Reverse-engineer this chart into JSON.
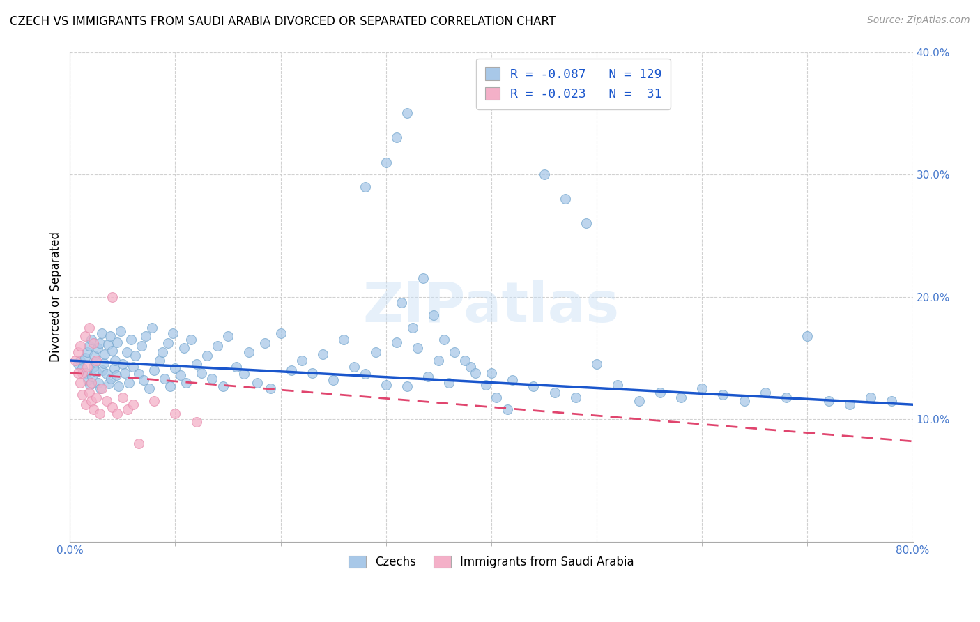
{
  "title": "CZECH VS IMMIGRANTS FROM SAUDI ARABIA DIVORCED OR SEPARATED CORRELATION CHART",
  "source": "Source: ZipAtlas.com",
  "ylabel": "Divorced or Separated",
  "xlim": [
    0.0,
    0.8
  ],
  "ylim": [
    0.0,
    0.4
  ],
  "yticks": [
    0.1,
    0.2,
    0.3,
    0.4
  ],
  "xticks": [
    0.0,
    0.8
  ],
  "minor_xticks": [
    0.1,
    0.2,
    0.3,
    0.4,
    0.5,
    0.6,
    0.7
  ],
  "minor_yticks": [],
  "czech_color": "#a8c8e8",
  "saudi_color": "#f4b0c8",
  "czech_edge_color": "#7aaad0",
  "saudi_edge_color": "#e890b0",
  "czech_line_color": "#1a56cc",
  "saudi_line_color": "#e0456e",
  "czech_R": -0.087,
  "czech_N": 129,
  "saudi_R": -0.023,
  "saudi_N": 31,
  "watermark": "ZIPatlas",
  "legend_czech": "Czechs",
  "legend_saudi": "Immigrants from Saudi Arabia",
  "background_color": "#ffffff",
  "grid_color": "#cccccc",
  "tick_color": "#4477cc",
  "czech_trend_start": 0.148,
  "czech_trend_end": 0.112,
  "saudi_trend_start": 0.138,
  "saudi_trend_end": 0.082,
  "czech_x": [
    0.008,
    0.01,
    0.012,
    0.014,
    0.015,
    0.016,
    0.017,
    0.018,
    0.019,
    0.02,
    0.021,
    0.022,
    0.023,
    0.024,
    0.025,
    0.026,
    0.027,
    0.028,
    0.029,
    0.03,
    0.031,
    0.032,
    0.033,
    0.035,
    0.036,
    0.037,
    0.038,
    0.039,
    0.04,
    0.042,
    0.043,
    0.044,
    0.045,
    0.046,
    0.048,
    0.05,
    0.052,
    0.054,
    0.056,
    0.058,
    0.06,
    0.062,
    0.065,
    0.068,
    0.07,
    0.072,
    0.075,
    0.078,
    0.08,
    0.085,
    0.088,
    0.09,
    0.093,
    0.095,
    0.098,
    0.1,
    0.105,
    0.108,
    0.11,
    0.115,
    0.12,
    0.125,
    0.13,
    0.135,
    0.14,
    0.145,
    0.15,
    0.158,
    0.165,
    0.17,
    0.178,
    0.185,
    0.19,
    0.2,
    0.21,
    0.22,
    0.23,
    0.24,
    0.25,
    0.26,
    0.27,
    0.28,
    0.29,
    0.3,
    0.31,
    0.32,
    0.33,
    0.34,
    0.35,
    0.36,
    0.38,
    0.4,
    0.42,
    0.44,
    0.46,
    0.48,
    0.5,
    0.52,
    0.54,
    0.56,
    0.58,
    0.6,
    0.62,
    0.64,
    0.66,
    0.68,
    0.7,
    0.72,
    0.74,
    0.76,
    0.78,
    0.31,
    0.3,
    0.28,
    0.32,
    0.45,
    0.47,
    0.49,
    0.315,
    0.325,
    0.335,
    0.345,
    0.355,
    0.365,
    0.375,
    0.385,
    0.395,
    0.405,
    0.415
  ],
  "czech_y": [
    0.145,
    0.148,
    0.142,
    0.15,
    0.138,
    0.155,
    0.132,
    0.16,
    0.128,
    0.165,
    0.135,
    0.143,
    0.152,
    0.147,
    0.139,
    0.158,
    0.13,
    0.162,
    0.125,
    0.17,
    0.14,
    0.146,
    0.153,
    0.137,
    0.161,
    0.129,
    0.168,
    0.133,
    0.156,
    0.142,
    0.148,
    0.136,
    0.163,
    0.127,
    0.172,
    0.145,
    0.138,
    0.155,
    0.13,
    0.165,
    0.143,
    0.152,
    0.137,
    0.16,
    0.132,
    0.168,
    0.125,
    0.175,
    0.14,
    0.148,
    0.155,
    0.133,
    0.162,
    0.127,
    0.17,
    0.142,
    0.136,
    0.158,
    0.13,
    0.165,
    0.145,
    0.138,
    0.152,
    0.133,
    0.16,
    0.127,
    0.168,
    0.143,
    0.137,
    0.155,
    0.13,
    0.162,
    0.125,
    0.17,
    0.14,
    0.148,
    0.138,
    0.153,
    0.132,
    0.165,
    0.143,
    0.137,
    0.155,
    0.128,
    0.163,
    0.127,
    0.158,
    0.135,
    0.148,
    0.13,
    0.143,
    0.138,
    0.132,
    0.127,
    0.122,
    0.118,
    0.145,
    0.128,
    0.115,
    0.122,
    0.118,
    0.125,
    0.12,
    0.115,
    0.122,
    0.118,
    0.168,
    0.115,
    0.112,
    0.118,
    0.115,
    0.33,
    0.31,
    0.29,
    0.35,
    0.3,
    0.28,
    0.26,
    0.195,
    0.175,
    0.215,
    0.185,
    0.165,
    0.155,
    0.148,
    0.138,
    0.128,
    0.118,
    0.108
  ],
  "saudi_x": [
    0.005,
    0.008,
    0.01,
    0.012,
    0.014,
    0.016,
    0.018,
    0.02,
    0.022,
    0.025,
    0.008,
    0.01,
    0.012,
    0.015,
    0.018,
    0.02,
    0.022,
    0.025,
    0.028,
    0.03,
    0.035,
    0.04,
    0.045,
    0.05,
    0.055,
    0.06,
    0.065,
    0.08,
    0.1,
    0.12,
    0.04
  ],
  "saudi_y": [
    0.148,
    0.155,
    0.16,
    0.138,
    0.168,
    0.143,
    0.175,
    0.13,
    0.162,
    0.148,
    0.138,
    0.13,
    0.12,
    0.112,
    0.122,
    0.115,
    0.108,
    0.118,
    0.105,
    0.125,
    0.115,
    0.11,
    0.105,
    0.118,
    0.108,
    0.112,
    0.08,
    0.115,
    0.105,
    0.098,
    0.2
  ]
}
